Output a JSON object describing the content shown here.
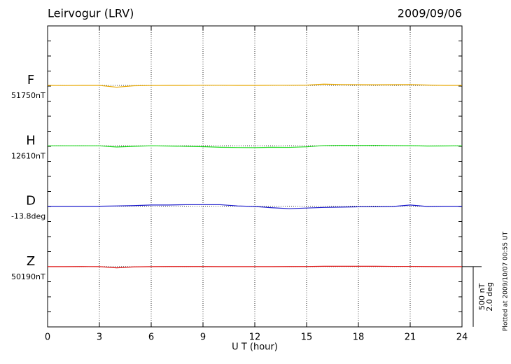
{
  "chart_data": {
    "type": "line",
    "title": "Leirvogur (LRV)",
    "date": "2009/09/06",
    "xlabel": "U T (hour)",
    "plotted_note": "Plotted at 2009/10/07 00:55 UT",
    "xlim": [
      0,
      24
    ],
    "xticks": [
      0,
      3,
      6,
      9,
      12,
      15,
      18,
      21,
      24
    ],
    "grid": true,
    "scale_bar": [
      {
        "value": 500,
        "label": "500 nT"
      },
      {
        "value": 2.0,
        "label": "2.0 deg"
      }
    ],
    "x": [
      0,
      1,
      2,
      3,
      4,
      5,
      6,
      7,
      8,
      9,
      10,
      11,
      12,
      13,
      14,
      15,
      16,
      17,
      18,
      19,
      20,
      21,
      22,
      23,
      24
    ],
    "series": [
      {
        "name": "F",
        "color": "#e8a800",
        "baseline": {
          "value": 51750,
          "label": "51750nT"
        },
        "values": [
          51750,
          51749,
          51750,
          51750,
          51735,
          51747,
          51749,
          51750,
          51750,
          51751,
          51751,
          51750,
          51750,
          51751,
          51751,
          51752,
          51760,
          51757,
          51756,
          51755,
          51756,
          51757,
          51753,
          51750,
          51750
        ]
      },
      {
        "name": "H",
        "color": "#22dd22",
        "baseline": {
          "value": 12610,
          "label": "12610nT"
        },
        "values": [
          12610,
          12610,
          12610,
          12610,
          12600,
          12606,
          12610,
          12608,
          12606,
          12603,
          12598,
          12596,
          12595,
          12598,
          12597,
          12602,
          12612,
          12614,
          12613,
          12614,
          12612,
          12611,
          12608,
          12609,
          12610
        ]
      },
      {
        "name": "D",
        "color": "#1a1acc",
        "baseline": {
          "value": -13.8,
          "label": "-13.8deg"
        },
        "values": [
          -13.8,
          -13.8,
          -13.8,
          -13.8,
          -13.79,
          -13.78,
          -13.76,
          -13.76,
          -13.75,
          -13.75,
          -13.75,
          -13.79,
          -13.81,
          -13.85,
          -13.88,
          -13.86,
          -13.84,
          -13.83,
          -13.82,
          -13.82,
          -13.81,
          -13.76,
          -13.81,
          -13.8,
          -13.8
        ]
      },
      {
        "name": "Z",
        "color": "#dd1111",
        "baseline": {
          "value": 50190,
          "label": "50190nT"
        },
        "values": [
          50190,
          50190,
          50191,
          50190,
          50180,
          50188,
          50190,
          50191,
          50191,
          50191,
          50190,
          50190,
          50190,
          50190,
          50191,
          50191,
          50193,
          50193,
          50193,
          50193,
          50192,
          50192,
          50191,
          50190,
          50190
        ]
      }
    ]
  }
}
